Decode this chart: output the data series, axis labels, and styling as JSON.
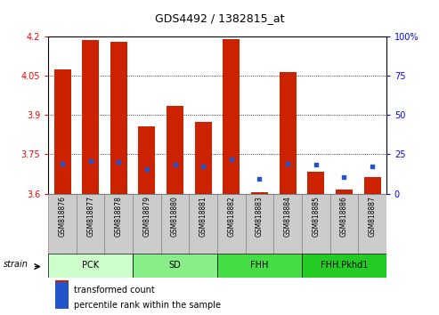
{
  "title": "GDS4492 / 1382815_at",
  "samples": [
    "GSM818876",
    "GSM818877",
    "GSM818878",
    "GSM818879",
    "GSM818880",
    "GSM818881",
    "GSM818882",
    "GSM818883",
    "GSM818884",
    "GSM818885",
    "GSM818886",
    "GSM818887"
  ],
  "red_values": [
    4.075,
    4.185,
    4.18,
    3.855,
    3.935,
    3.875,
    4.19,
    3.605,
    4.065,
    3.685,
    3.615,
    3.665
  ],
  "blue_values": [
    3.715,
    3.725,
    3.72,
    3.695,
    3.71,
    3.705,
    3.73,
    3.655,
    3.715,
    3.71,
    3.665,
    3.705
  ],
  "ymin": 3.6,
  "ymax": 4.2,
  "yticks_left": [
    3.6,
    3.75,
    3.9,
    4.05,
    4.2
  ],
  "yticks_right": [
    0,
    25,
    50,
    75,
    100
  ],
  "groups": [
    {
      "label": "PCK",
      "start": 0,
      "end": 3,
      "color": "#ccffcc"
    },
    {
      "label": "SD",
      "start": 3,
      "end": 6,
      "color": "#88ee88"
    },
    {
      "label": "FHH",
      "start": 6,
      "end": 9,
      "color": "#44dd44"
    },
    {
      "label": "FHH.Pkhd1",
      "start": 9,
      "end": 12,
      "color": "#22cc22"
    }
  ],
  "bar_color": "#cc2200",
  "blue_color": "#2255cc",
  "bar_width": 0.6,
  "tick_bg_color": "#cccccc",
  "tick_border_color": "#888888",
  "grid_color": "#000000",
  "legend_red": "transformed count",
  "legend_blue": "percentile rank within the sample",
  "strain_label": "strain"
}
